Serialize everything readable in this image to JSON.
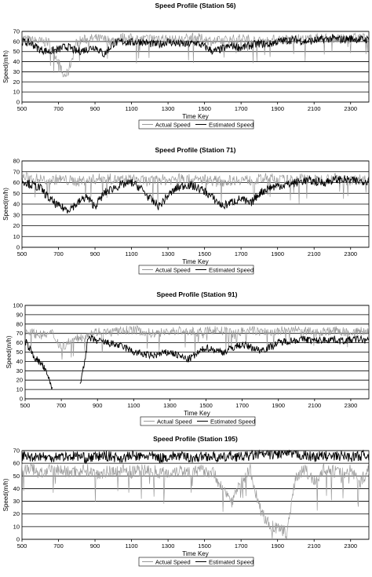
{
  "charts": [
    {
      "title": "Speed Profile (Station 56)",
      "xlabel": "Time Key",
      "ylabel": "Speed(m/h)",
      "xlim": [
        500,
        2400
      ],
      "ylim": [
        0,
        70
      ],
      "yticks": [
        0,
        10,
        20,
        30,
        40,
        50,
        60,
        70
      ],
      "xticks": [
        500,
        700,
        900,
        1100,
        1300,
        1500,
        1700,
        1900,
        2100,
        2300
      ],
      "legend": [
        "Actual Speed",
        "Estimated Speed"
      ]
    },
    {
      "title": "Speed Profile (Station 71)",
      "xlabel": "Time Key",
      "ylabel": "Speed(m/h)",
      "xlim": [
        500,
        2400
      ],
      "ylim": [
        0,
        80
      ],
      "yticks": [
        0,
        10,
        20,
        30,
        40,
        50,
        60,
        70,
        80
      ],
      "xticks": [
        500,
        700,
        900,
        1100,
        1300,
        1500,
        1700,
        1900,
        2100,
        2300
      ],
      "legend": [
        "Actual Speed",
        "Estimated Speed"
      ]
    },
    {
      "title": "Speed Profile (Station 91)",
      "xlabel": "Time Key",
      "ylabel": "Speed(m/h)",
      "xlim": [
        500,
        2400
      ],
      "ylim": [
        0,
        100
      ],
      "yticks": [
        0,
        10,
        20,
        30,
        40,
        50,
        60,
        70,
        80,
        90,
        100
      ],
      "xticks": [
        500,
        700,
        900,
        1100,
        1300,
        1500,
        1700,
        1900,
        2100,
        2300
      ],
      "legend": [
        "Actual Speed",
        "Estimated Speed"
      ]
    },
    {
      "title": "Speed Profile (Station 195)",
      "xlabel": "Time Key",
      "ylabel": "Speed(m/h)",
      "xlim": [
        500,
        2400
      ],
      "ylim": [
        0,
        70
      ],
      "yticks": [
        0,
        10,
        20,
        30,
        40,
        50,
        60,
        70
      ],
      "xticks": [
        500,
        700,
        900,
        1100,
        1300,
        1500,
        1700,
        1900,
        2100,
        2300
      ],
      "legend": [
        "Actual Speed",
        "Estimated Speed"
      ]
    }
  ],
  "chart_data": [
    {
      "type": "line",
      "x_step": 50,
      "series": [
        {
          "name": "Actual Speed",
          "color": "#9a9a9a",
          "x": [
            500,
            550,
            600,
            650,
            700,
            725,
            750,
            800,
            850,
            900,
            950,
            1000,
            1050,
            1100,
            1150,
            1200,
            1250,
            1300,
            1350,
            1400,
            1450,
            1500,
            1550,
            1600,
            1650,
            1700,
            1750,
            1800,
            1850,
            1900,
            1950,
            2000,
            2050,
            2100,
            2150,
            2200,
            2250,
            2300,
            2350,
            2400
          ],
          "y": [
            63,
            61,
            60,
            59,
            40,
            26,
            28,
            60,
            62,
            63,
            62,
            61,
            64,
            63,
            62,
            63,
            64,
            62,
            61,
            63,
            64,
            62,
            60,
            61,
            62,
            63,
            62,
            60,
            61,
            62,
            62,
            63,
            62,
            63,
            64,
            63,
            62,
            63,
            64,
            63
          ]
        },
        {
          "name": "Estimated Speed",
          "color": "#000000",
          "x": [
            500,
            550,
            600,
            650,
            700,
            725,
            750,
            800,
            850,
            900,
            950,
            1000,
            1050,
            1100,
            1150,
            1200,
            1250,
            1300,
            1350,
            1400,
            1450,
            1500,
            1550,
            1600,
            1650,
            1700,
            1750,
            1800,
            1850,
            1900,
            1950,
            2000,
            2050,
            2100,
            2150,
            2200,
            2250,
            2300,
            2350,
            2400
          ],
          "y": [
            60,
            58,
            52,
            50,
            52,
            54,
            55,
            50,
            52,
            55,
            47,
            58,
            60,
            59,
            60,
            58,
            57,
            60,
            58,
            57,
            59,
            55,
            50,
            53,
            56,
            54,
            56,
            58,
            57,
            60,
            61,
            62,
            60,
            61,
            62,
            63,
            62,
            63,
            62,
            62
          ]
        }
      ]
    },
    {
      "type": "line",
      "x_step": 50,
      "series": [
        {
          "name": "Actual Speed",
          "color": "#9a9a9a",
          "x": [
            500,
            550,
            600,
            650,
            700,
            750,
            800,
            850,
            900,
            950,
            1000,
            1050,
            1100,
            1150,
            1200,
            1250,
            1300,
            1350,
            1400,
            1450,
            1500,
            1550,
            1600,
            1650,
            1700,
            1750,
            1800,
            1850,
            1900,
            1950,
            2000,
            2050,
            2100,
            2150,
            2200,
            2250,
            2300,
            2350,
            2400
          ],
          "y": [
            65,
            64,
            63,
            62,
            63,
            62,
            61,
            62,
            63,
            64,
            63,
            62,
            63,
            62,
            61,
            63,
            62,
            64,
            63,
            62,
            63,
            62,
            61,
            62,
            63,
            62,
            63,
            64,
            63,
            62,
            63,
            64,
            62,
            63,
            64,
            63,
            62,
            63,
            64
          ]
        },
        {
          "name": "Estimated Speed",
          "color": "#000000",
          "x": [
            500,
            550,
            600,
            650,
            700,
            750,
            800,
            850,
            900,
            950,
            1000,
            1050,
            1100,
            1150,
            1200,
            1250,
            1300,
            1350,
            1400,
            1450,
            1500,
            1550,
            1600,
            1650,
            1700,
            1750,
            1800,
            1850,
            1900,
            1950,
            2000,
            2050,
            2100,
            2150,
            2200,
            2250,
            2300,
            2350,
            2400
          ],
          "y": [
            62,
            58,
            55,
            45,
            38,
            35,
            40,
            47,
            38,
            50,
            55,
            58,
            60,
            55,
            45,
            38,
            48,
            55,
            58,
            56,
            52,
            45,
            38,
            42,
            45,
            40,
            50,
            55,
            57,
            58,
            60,
            62,
            61,
            60,
            62,
            63,
            62,
            61,
            62
          ]
        }
      ]
    },
    {
      "type": "line",
      "x_step": 50,
      "series": [
        {
          "name": "Actual Speed",
          "color": "#9a9a9a",
          "x": [
            500,
            550,
            600,
            650,
            700,
            750,
            800,
            850,
            900,
            950,
            1000,
            1050,
            1100,
            1150,
            1200,
            1250,
            1300,
            1350,
            1400,
            1450,
            1500,
            1550,
            1600,
            1650,
            1700,
            1750,
            1800,
            1850,
            1900,
            1950,
            2000,
            2050,
            2100,
            2150,
            2200,
            2250,
            2300,
            2350,
            2400
          ],
          "y": [
            72,
            70,
            68,
            70,
            55,
            62,
            65,
            70,
            72,
            71,
            72,
            73,
            74,
            72,
            70,
            71,
            72,
            73,
            72,
            71,
            72,
            74,
            72,
            70,
            72,
            73,
            72,
            71,
            72,
            74,
            73,
            72,
            71,
            72,
            73,
            72,
            71,
            72,
            73
          ]
        },
        {
          "name": "Estimated Speed",
          "color": "#000000",
          "x": [
            500,
            550,
            600,
            650,
            700,
            750,
            800,
            850,
            900,
            950,
            1000,
            1050,
            1100,
            1150,
            1200,
            1250,
            1300,
            1350,
            1400,
            1450,
            1500,
            1550,
            1600,
            1650,
            1700,
            1750,
            1800,
            1850,
            1900,
            1950,
            2000,
            2050,
            2100,
            2150,
            2200,
            2250,
            2300,
            2350,
            2400
          ],
          "y": [
            62,
            45,
            35,
            12,
            null,
            null,
            10,
            65,
            62,
            60,
            58,
            55,
            50,
            48,
            46,
            48,
            50,
            46,
            42,
            48,
            55,
            52,
            50,
            55,
            58,
            55,
            52,
            55,
            60,
            62,
            63,
            64,
            62,
            63,
            64,
            62,
            63,
            64,
            62
          ]
        }
      ]
    },
    {
      "type": "line",
      "x_step": 50,
      "series": [
        {
          "name": "Actual Speed",
          "color": "#9a9a9a",
          "x": [
            500,
            550,
            600,
            650,
            700,
            750,
            800,
            850,
            900,
            950,
            1000,
            1050,
            1100,
            1150,
            1200,
            1250,
            1300,
            1350,
            1400,
            1450,
            1500,
            1550,
            1600,
            1650,
            1700,
            1750,
            1800,
            1850,
            1900,
            1950,
            2000,
            2050,
            2100,
            2150,
            2200,
            2250,
            2300,
            2350,
            2400
          ],
          "y": [
            55,
            56,
            52,
            54,
            55,
            53,
            54,
            55,
            52,
            53,
            54,
            55,
            53,
            54,
            55,
            53,
            52,
            55,
            54,
            53,
            55,
            52,
            40,
            30,
            45,
            55,
            25,
            12,
            8,
            5,
            50,
            55,
            45,
            55,
            54,
            52,
            55,
            45,
            55
          ]
        },
        {
          "name": "Estimated Speed",
          "color": "#000000",
          "x": [
            500,
            550,
            600,
            650,
            700,
            750,
            800,
            850,
            900,
            950,
            1000,
            1050,
            1100,
            1150,
            1200,
            1250,
            1300,
            1350,
            1400,
            1450,
            1500,
            1550,
            1600,
            1650,
            1700,
            1750,
            1800,
            1850,
            1900,
            1950,
            2000,
            2050,
            2100,
            2150,
            2200,
            2250,
            2300,
            2350,
            2400
          ],
          "y": [
            66,
            65,
            66,
            64,
            66,
            65,
            66,
            64,
            65,
            66,
            65,
            64,
            66,
            65,
            66,
            64,
            65,
            66,
            65,
            64,
            66,
            65,
            64,
            66,
            65,
            66,
            67,
            67,
            67,
            68,
            67,
            66,
            65,
            66,
            65,
            66,
            65,
            66,
            66
          ]
        }
      ]
    }
  ]
}
